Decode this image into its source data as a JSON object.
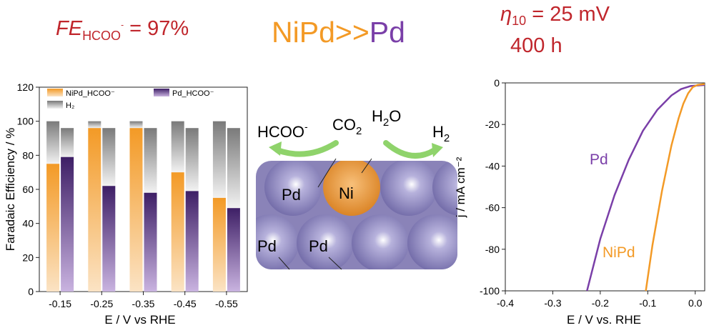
{
  "headline": {
    "fe_main": "FE",
    "fe_sub": "HCOO",
    "fe_sup": "-",
    "fe_value": " = 97%",
    "comparison_a": "NiPd",
    "comparison_sep": ">>",
    "comparison_b": "Pd",
    "eta_symbol": "η",
    "eta_sub": "10",
    "eta_value": " = 25 mV",
    "lifetime": "400 h"
  },
  "colors": {
    "nipd": "#f39a26",
    "pd": "#7a3fa8",
    "h2": "#8a8a8a",
    "title_red": "#c0262c",
    "atom_pd": "#8a83b8",
    "atom_ni": "#e5922b"
  },
  "schematic": {
    "label_hcoo": "HCOO",
    "label_hcoo_sup": "-",
    "label_co2": "CO",
    "label_co2_sub": "2",
    "label_h2o_a": "H",
    "label_h2o_sub": "2",
    "label_h2o_b": "O",
    "label_h2": "H",
    "label_h2_sub": "2",
    "atom_labels": [
      "Pd",
      "Ni",
      "Pd",
      "Pd"
    ]
  },
  "chart_data": [
    {
      "type": "bar",
      "xlabel": "E / V vs RHE",
      "ylabel": "Faradaic Efficiency / %",
      "ylim": [
        0,
        120
      ],
      "yticks": [
        "0",
        "20",
        "40",
        "60",
        "80",
        "100",
        "120"
      ],
      "categories": [
        "-0.15",
        "-0.25",
        "-0.35",
        "-0.45",
        "-0.55"
      ],
      "legend": [
        "NiPd_HCOO⁻",
        "Pd_HCOO⁻",
        "H₂"
      ],
      "series": [
        {
          "name": "NiPd_HCOO⁻",
          "values": [
            75,
            96,
            96,
            70,
            55
          ],
          "total": [
            100,
            100,
            100,
            100,
            100
          ]
        },
        {
          "name": "Pd_HCOO⁻",
          "values": [
            79,
            62,
            58,
            59,
            49
          ],
          "total": [
            96,
            96,
            96,
            96,
            96
          ]
        }
      ],
      "grid": false
    },
    {
      "type": "line",
      "xlabel": "E / V vs. RHE",
      "ylabel": "j / mA cm⁻²",
      "xlim": [
        -0.4,
        0.02
      ],
      "ylim": [
        -100,
        0
      ],
      "xticks": [
        "-0.4",
        "-0.3",
        "-0.2",
        "-0.1",
        "0.0"
      ],
      "yticks": [
        "0",
        "-20",
        "-40",
        "-60",
        "-80",
        "-100"
      ],
      "series": [
        {
          "name": "Pd",
          "x": [
            -0.228,
            -0.2,
            -0.17,
            -0.14,
            -0.11,
            -0.08,
            -0.05,
            -0.03,
            -0.01,
            0.02
          ],
          "y": [
            -100,
            -75,
            -54,
            -37,
            -23,
            -13,
            -6,
            -3,
            -1.5,
            -1
          ]
        },
        {
          "name": "NiPd",
          "x": [
            -0.104,
            -0.09,
            -0.07,
            -0.05,
            -0.035,
            -0.025,
            -0.015,
            -0.005,
            0.005,
            0.02
          ],
          "y": [
            -100,
            -78,
            -52,
            -30,
            -17,
            -10,
            -5,
            -2,
            -1,
            -0.5
          ]
        }
      ],
      "grid": false
    }
  ]
}
